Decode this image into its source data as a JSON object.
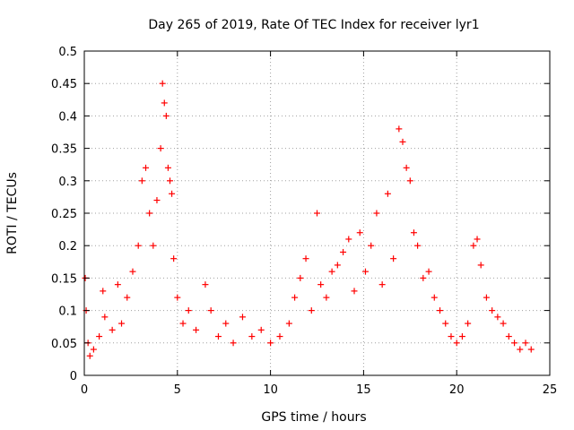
{
  "chart_data": {
    "type": "scatter",
    "title": "Day 265 of 2019, Rate Of TEC Index for receiver lyr1",
    "xlabel": "GPS time / hours",
    "ylabel": "ROTI / TECUs",
    "xlim": [
      0,
      25
    ],
    "ylim": [
      0,
      0.5
    ],
    "xticks": [
      0,
      5,
      10,
      15,
      20,
      25
    ],
    "yticks": [
      0,
      0.05,
      0.1,
      0.15,
      0.2,
      0.25,
      0.3,
      0.35,
      0.4,
      0.45,
      0.5
    ],
    "xtick_labels": [
      "0",
      "5",
      "10",
      "15",
      "20",
      "25"
    ],
    "ytick_labels": [
      "0",
      "0.05",
      "0.1",
      "0.15",
      "0.2",
      "0.25",
      "0.3",
      "0.35",
      "0.4",
      "0.45",
      "0.5"
    ],
    "grid": true,
    "marker": "+",
    "series": [
      {
        "name": "ROTI",
        "color": "#ff0000",
        "x": [
          0.05,
          0.1,
          0.2,
          0.3,
          0.5,
          0.8,
          1.0,
          1.1,
          1.5,
          1.8,
          2.0,
          2.3,
          2.6,
          2.9,
          3.1,
          3.3,
          3.5,
          3.7,
          3.9,
          4.1,
          4.2,
          4.3,
          4.4,
          4.5,
          4.6,
          4.7,
          4.8,
          5.0,
          5.3,
          5.6,
          6.0,
          6.5,
          6.8,
          7.2,
          7.6,
          8.0,
          8.5,
          9.0,
          9.5,
          10.0,
          10.5,
          11.0,
          11.3,
          11.6,
          11.9,
          12.2,
          12.5,
          12.7,
          13.0,
          13.3,
          13.6,
          13.9,
          14.2,
          14.5,
          14.8,
          15.1,
          15.4,
          15.7,
          16.0,
          16.3,
          16.6,
          16.9,
          17.1,
          17.3,
          17.5,
          17.7,
          17.9,
          18.2,
          18.5,
          18.8,
          19.1,
          19.4,
          19.7,
          20.0,
          20.3,
          20.6,
          20.9,
          21.1,
          21.3,
          21.6,
          21.9,
          22.2,
          22.5,
          22.8,
          23.1,
          23.4,
          23.7,
          24.0
        ],
        "y": [
          0.15,
          0.1,
          0.05,
          0.03,
          0.04,
          0.06,
          0.13,
          0.09,
          0.07,
          0.14,
          0.08,
          0.12,
          0.16,
          0.2,
          0.3,
          0.32,
          0.25,
          0.2,
          0.27,
          0.35,
          0.45,
          0.42,
          0.4,
          0.32,
          0.3,
          0.28,
          0.18,
          0.12,
          0.08,
          0.1,
          0.07,
          0.14,
          0.1,
          0.06,
          0.08,
          0.05,
          0.09,
          0.06,
          0.07,
          0.05,
          0.06,
          0.08,
          0.12,
          0.15,
          0.18,
          0.1,
          0.25,
          0.14,
          0.12,
          0.16,
          0.17,
          0.19,
          0.21,
          0.13,
          0.22,
          0.16,
          0.2,
          0.25,
          0.14,
          0.28,
          0.18,
          0.38,
          0.36,
          0.32,
          0.3,
          0.22,
          0.2,
          0.15,
          0.16,
          0.12,
          0.1,
          0.08,
          0.06,
          0.05,
          0.06,
          0.08,
          0.2,
          0.21,
          0.17,
          0.12,
          0.1,
          0.09,
          0.08,
          0.06,
          0.05,
          0.04,
          0.05,
          0.04
        ]
      }
    ]
  }
}
